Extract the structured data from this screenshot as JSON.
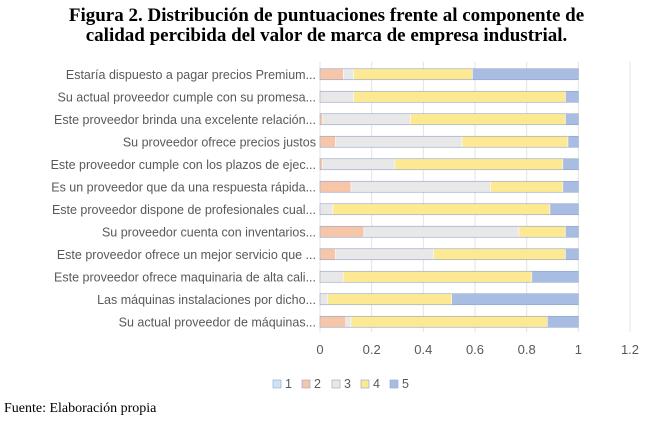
{
  "figure": {
    "title_line1": "Figura 2. Distribución de puntuaciones frente al componente de",
    "title_line2": "calidad percibida del valor de marca de empresa industrial.",
    "source": "Fuente: Elaboración propia"
  },
  "chart_data": {
    "type": "bar",
    "orientation": "horizontal",
    "stacked": true,
    "categories": [
      "Estaría dispuesto a pagar precios Premium...",
      "Su actual proveedor cumple con su promesa...",
      "Este proveedor brinda una excelente relación...",
      "Su proveedor ofrece precios justos",
      "Este proveedor cumple con los plazos de ejec...",
      "Es un proveedor que da una respuesta rápida...",
      "Este proveedor dispone de profesionales cual...",
      "Su proveedor cuenta con inventarios...",
      "Este proveedor ofrece un mejor servicio que ...",
      "Este proveedor ofrece maquinaria de alta cali...",
      "Las máquinas instalaciones por dicho...",
      "Su actual proveedor de máquinas..."
    ],
    "series": [
      {
        "name": "1",
        "color": "#c9e4f5",
        "values": [
          0,
          0,
          0,
          0,
          0,
          0,
          0,
          0,
          0,
          0,
          0,
          0
        ]
      },
      {
        "name": "2",
        "color": "#f7c5a8",
        "values": [
          0.09,
          0,
          0.01,
          0.06,
          0.01,
          0.12,
          0,
          0.17,
          0.06,
          0,
          0,
          0.1
        ]
      },
      {
        "name": "3",
        "color": "#e8e8e8",
        "values": [
          0.04,
          0.13,
          0.34,
          0.49,
          0.28,
          0.54,
          0.05,
          0.6,
          0.38,
          0.09,
          0.03,
          0.02
        ]
      },
      {
        "name": "4",
        "color": "#fde992",
        "values": [
          0.46,
          0.82,
          0.6,
          0.41,
          0.65,
          0.28,
          0.84,
          0.18,
          0.51,
          0.73,
          0.48,
          0.76
        ]
      },
      {
        "name": "5",
        "color": "#a9bde3",
        "values": [
          0.41,
          0.05,
          0.05,
          0.04,
          0.06,
          0.06,
          0.11,
          0.05,
          0.05,
          0.18,
          0.49,
          0.12
        ]
      }
    ],
    "xlim": [
      0,
      1.2
    ],
    "xticks": [
      "0",
      "0.2",
      "0.4",
      "0.6",
      "0.8",
      "1",
      "1.2"
    ],
    "grid": true,
    "legend_position": "bottom"
  }
}
